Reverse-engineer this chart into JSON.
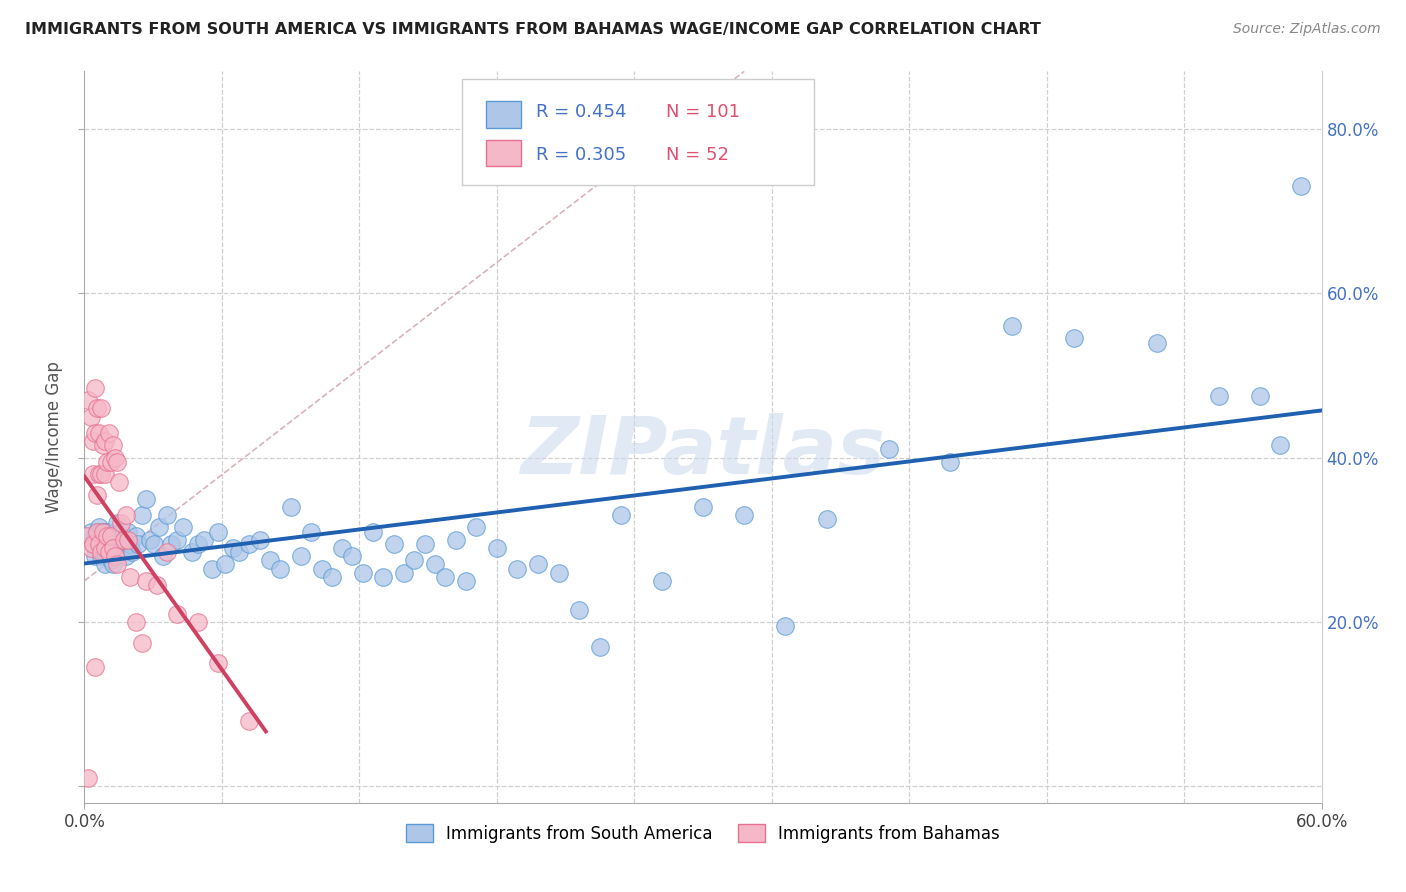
{
  "title": "IMMIGRANTS FROM SOUTH AMERICA VS IMMIGRANTS FROM BAHAMAS WAGE/INCOME GAP CORRELATION CHART",
  "source": "Source: ZipAtlas.com",
  "ylabel": "Wage/Income Gap",
  "series1_label": "Immigrants from South America",
  "series2_label": "Immigrants from Bahamas",
  "series1_R": 0.454,
  "series1_N": 101,
  "series2_R": 0.305,
  "series2_N": 52,
  "series1_color": "#aec6e8",
  "series2_color": "#f5b8c8",
  "series1_edge_color": "#5b9bd5",
  "series2_edge_color": "#e87090",
  "series1_line_color": "#2060b0",
  "series2_line_color": "#d04060",
  "xmin": 0.0,
  "xmax": 0.6,
  "ymin": -0.02,
  "ymax": 0.87,
  "yticks": [
    0.0,
    0.2,
    0.4,
    0.6,
    0.8
  ],
  "ytick_labels_right": [
    "",
    "20.0%",
    "40.0%",
    "60.0%",
    "80.0%"
  ],
  "xtick_left_label": "0.0%",
  "xtick_right_label": "60.0%",
  "watermark": "ZIPatlas",
  "background_color": "#ffffff",
  "grid_color": "#d0d0d0",
  "title_color": "#222222",
  "legend_R_color": "#4472c4",
  "legend_N_color": "#e05070",
  "series1_scatter_x": [
    0.003,
    0.004,
    0.005,
    0.005,
    0.006,
    0.006,
    0.007,
    0.007,
    0.008,
    0.008,
    0.008,
    0.009,
    0.009,
    0.01,
    0.01,
    0.01,
    0.01,
    0.011,
    0.011,
    0.012,
    0.012,
    0.012,
    0.013,
    0.013,
    0.014,
    0.015,
    0.015,
    0.015,
    0.016,
    0.017,
    0.018,
    0.018,
    0.019,
    0.02,
    0.021,
    0.022,
    0.023,
    0.025,
    0.026,
    0.028,
    0.03,
    0.032,
    0.034,
    0.036,
    0.038,
    0.04,
    0.042,
    0.045,
    0.048,
    0.052,
    0.055,
    0.058,
    0.062,
    0.065,
    0.068,
    0.072,
    0.075,
    0.08,
    0.085,
    0.09,
    0.095,
    0.1,
    0.105,
    0.11,
    0.115,
    0.12,
    0.125,
    0.13,
    0.135,
    0.14,
    0.145,
    0.15,
    0.155,
    0.16,
    0.165,
    0.17,
    0.175,
    0.18,
    0.185,
    0.19,
    0.2,
    0.21,
    0.22,
    0.23,
    0.24,
    0.25,
    0.26,
    0.28,
    0.3,
    0.32,
    0.34,
    0.36,
    0.39,
    0.42,
    0.45,
    0.48,
    0.52,
    0.55,
    0.57,
    0.58,
    0.59
  ],
  "series1_scatter_y": [
    0.31,
    0.295,
    0.305,
    0.28,
    0.31,
    0.3,
    0.315,
    0.29,
    0.295,
    0.28,
    0.31,
    0.3,
    0.285,
    0.295,
    0.27,
    0.31,
    0.285,
    0.29,
    0.31,
    0.285,
    0.3,
    0.29,
    0.275,
    0.295,
    0.27,
    0.3,
    0.29,
    0.285,
    0.32,
    0.285,
    0.31,
    0.29,
    0.3,
    0.28,
    0.31,
    0.295,
    0.285,
    0.305,
    0.295,
    0.33,
    0.35,
    0.3,
    0.295,
    0.315,
    0.28,
    0.33,
    0.295,
    0.3,
    0.315,
    0.285,
    0.295,
    0.3,
    0.265,
    0.31,
    0.27,
    0.29,
    0.285,
    0.295,
    0.3,
    0.275,
    0.265,
    0.34,
    0.28,
    0.31,
    0.265,
    0.255,
    0.29,
    0.28,
    0.26,
    0.31,
    0.255,
    0.295,
    0.26,
    0.275,
    0.295,
    0.27,
    0.255,
    0.3,
    0.25,
    0.315,
    0.29,
    0.265,
    0.27,
    0.26,
    0.215,
    0.17,
    0.33,
    0.25,
    0.34,
    0.33,
    0.195,
    0.325,
    0.41,
    0.395,
    0.56,
    0.545,
    0.54,
    0.475,
    0.475,
    0.415,
    0.73
  ],
  "series2_scatter_x": [
    0.001,
    0.002,
    0.002,
    0.003,
    0.003,
    0.004,
    0.004,
    0.004,
    0.005,
    0.005,
    0.005,
    0.006,
    0.006,
    0.006,
    0.007,
    0.007,
    0.007,
    0.008,
    0.008,
    0.008,
    0.009,
    0.009,
    0.01,
    0.01,
    0.01,
    0.011,
    0.011,
    0.012,
    0.012,
    0.013,
    0.013,
    0.014,
    0.014,
    0.015,
    0.015,
    0.016,
    0.016,
    0.017,
    0.018,
    0.019,
    0.02,
    0.021,
    0.022,
    0.025,
    0.028,
    0.03,
    0.035,
    0.04,
    0.045,
    0.055,
    0.065,
    0.08
  ],
  "series2_scatter_y": [
    0.305,
    0.47,
    0.01,
    0.45,
    0.29,
    0.42,
    0.38,
    0.295,
    0.485,
    0.43,
    0.145,
    0.46,
    0.355,
    0.31,
    0.43,
    0.38,
    0.295,
    0.46,
    0.38,
    0.285,
    0.415,
    0.31,
    0.42,
    0.38,
    0.29,
    0.395,
    0.305,
    0.43,
    0.285,
    0.395,
    0.305,
    0.415,
    0.29,
    0.4,
    0.28,
    0.395,
    0.27,
    0.37,
    0.32,
    0.3,
    0.33,
    0.3,
    0.255,
    0.2,
    0.175,
    0.25,
    0.245,
    0.285,
    0.21,
    0.2,
    0.15,
    0.08
  ]
}
